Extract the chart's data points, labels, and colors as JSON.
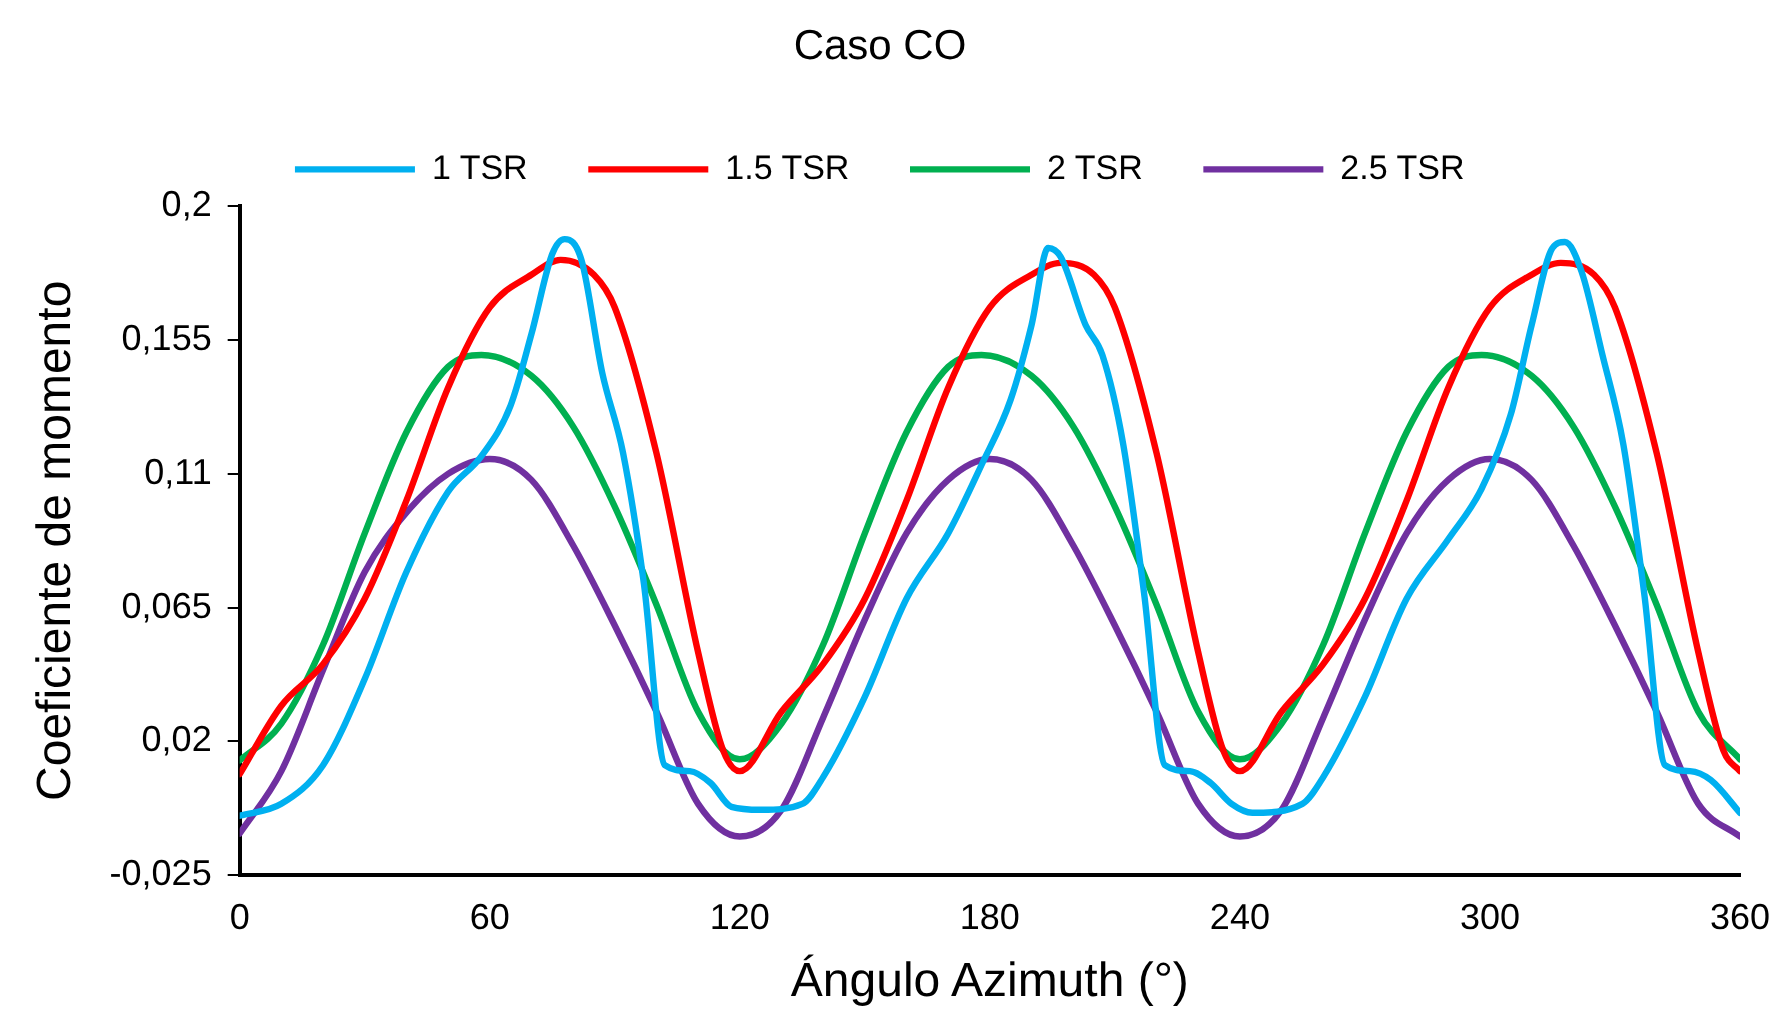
{
  "chart_data": {
    "type": "line",
    "title": "Caso CO",
    "xlabel": "Ángulo Azimuth (°)",
    "ylabel": "Coeficiente de momento",
    "xlim": [
      0,
      360
    ],
    "xticks": [
      0,
      60,
      120,
      180,
      240,
      300,
      360
    ],
    "ylim": [
      -0.025,
      0.2
    ],
    "yticks": [
      {
        "value": -0.025,
        "label": "-0,025"
      },
      {
        "value": 0.02,
        "label": "0,02"
      },
      {
        "value": 0.065,
        "label": "0,065"
      },
      {
        "value": 0.11,
        "label": "0,11"
      },
      {
        "value": 0.155,
        "label": "0,155"
      },
      {
        "value": 0.2,
        "label": "0,2"
      }
    ],
    "grid": false,
    "legend": "top",
    "marker": "none",
    "line_style": "solid",
    "series": [
      {
        "name": "1 TSR",
        "color": "#00b0f0",
        "x": [
          0,
          10,
          20,
          30,
          40,
          50,
          58,
          65,
          70,
          75,
          78,
          82,
          87,
          92,
          97,
          102,
          108,
          113,
          118,
          125,
          135,
          140,
          150,
          160,
          170,
          178,
          185,
          190,
          194,
          197,
          203,
          207,
          212,
          217,
          222,
          228,
          233,
          238,
          243,
          255,
          260,
          270,
          280,
          290,
          298,
          305,
          310,
          315,
          318,
          322,
          327,
          332,
          337,
          342,
          348,
          353,
          360
        ],
        "values": [
          -0.005,
          -0.001,
          0.012,
          0.041,
          0.077,
          0.104,
          0.116,
          0.133,
          0.157,
          0.184,
          0.189,
          0.182,
          0.144,
          0.117,
          0.073,
          0.012,
          0.01,
          0.006,
          -0.002,
          -0.003,
          -0.001,
          0.008,
          0.035,
          0.068,
          0.09,
          0.113,
          0.135,
          0.16,
          0.186,
          0.183,
          0.16,
          0.15,
          0.12,
          0.07,
          0.012,
          0.01,
          0.006,
          -0.001,
          -0.004,
          -0.001,
          0.008,
          0.035,
          0.068,
          0.088,
          0.105,
          0.13,
          0.16,
          0.186,
          0.188,
          0.178,
          0.15,
          0.12,
          0.07,
          0.012,
          0.01,
          0.007,
          -0.004
        ]
      },
      {
        "name": "1.5 TSR",
        "color": "#ff0000",
        "x": [
          0,
          10,
          20,
          30,
          40,
          50,
          60,
          70,
          77,
          85,
          90,
          100,
          110,
          116,
          120,
          130,
          140,
          150,
          160,
          170,
          180,
          190,
          197,
          205,
          210,
          220,
          230,
          236,
          240,
          250,
          260,
          270,
          280,
          290,
          300,
          310,
          317,
          325,
          330,
          340,
          350,
          356,
          360
        ],
        "values": [
          0.009,
          0.032,
          0.046,
          0.068,
          0.101,
          0.139,
          0.166,
          0.177,
          0.182,
          0.177,
          0.166,
          0.117,
          0.05,
          0.017,
          0.01,
          0.03,
          0.046,
          0.068,
          0.101,
          0.139,
          0.166,
          0.177,
          0.181,
          0.177,
          0.166,
          0.117,
          0.05,
          0.017,
          0.01,
          0.03,
          0.046,
          0.068,
          0.101,
          0.139,
          0.166,
          0.177,
          0.181,
          0.177,
          0.166,
          0.117,
          0.05,
          0.017,
          0.01
        ]
      },
      {
        "name": "2 TSR",
        "color": "#00b050",
        "x": [
          0,
          10,
          20,
          30,
          40,
          50,
          58,
          70,
          80,
          90,
          100,
          110,
          120,
          130,
          140,
          150,
          160,
          170,
          178,
          190,
          200,
          210,
          220,
          230,
          240,
          250,
          260,
          270,
          280,
          290,
          298,
          310,
          320,
          330,
          340,
          350,
          360
        ],
        "values": [
          0.0136,
          0.026,
          0.0525,
          0.09,
          0.124,
          0.146,
          0.15,
          0.143,
          0.126,
          0.099,
          0.066,
          0.03,
          0.014,
          0.026,
          0.0525,
          0.09,
          0.124,
          0.146,
          0.15,
          0.143,
          0.126,
          0.099,
          0.066,
          0.03,
          0.014,
          0.026,
          0.0525,
          0.09,
          0.124,
          0.146,
          0.15,
          0.143,
          0.126,
          0.099,
          0.066,
          0.03,
          0.014
        ]
      },
      {
        "name": "2.5 TSR",
        "color": "#7030a0",
        "x": [
          0,
          10,
          20,
          30,
          40,
          50,
          60,
          70,
          80,
          90,
          100,
          110,
          120,
          130,
          140,
          150,
          160,
          170,
          180,
          190,
          200,
          210,
          220,
          230,
          240,
          250,
          260,
          270,
          280,
          290,
          300,
          310,
          320,
          330,
          340,
          350,
          360
        ],
        "values": [
          -0.011,
          0.01,
          0.044,
          0.077,
          0.097,
          0.11,
          0.115,
          0.108,
          0.086,
          0.059,
          0.03,
          -0.001,
          -0.012,
          -0.003,
          0.028,
          0.061,
          0.09,
          0.108,
          0.115,
          0.108,
          0.086,
          0.059,
          0.03,
          -0.001,
          -0.012,
          -0.003,
          0.028,
          0.061,
          0.09,
          0.108,
          0.115,
          0.108,
          0.086,
          0.059,
          0.03,
          -0.001,
          -0.012
        ]
      }
    ]
  }
}
